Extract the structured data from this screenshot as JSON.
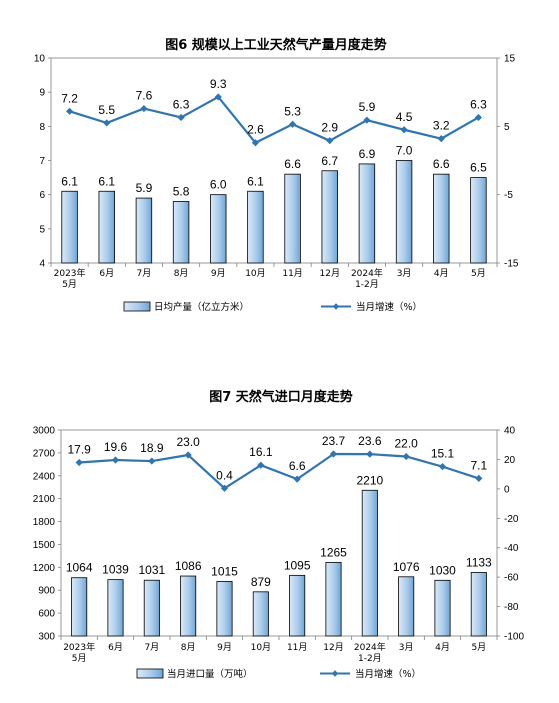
{
  "chart_data": [
    {
      "type": "bar",
      "title": "图6 规模以上工业天然气产量月度走势",
      "categories": [
        [
          "2023年",
          "5月"
        ],
        [
          "6月"
        ],
        [
          "7月"
        ],
        [
          "8月"
        ],
        [
          "9月"
        ],
        [
          "10月"
        ],
        [
          "11月"
        ],
        [
          "12月"
        ],
        [
          "2024年",
          "1-2月"
        ],
        [
          "3月"
        ],
        [
          "4月"
        ],
        [
          "5月"
        ]
      ],
      "series": [
        {
          "name": "日均产量（亿立方米）",
          "axis": "left",
          "kind": "bar",
          "values": [
            6.1,
            6.1,
            5.9,
            5.8,
            6.0,
            6.1,
            6.6,
            6.7,
            6.9,
            7.0,
            6.6,
            6.5
          ]
        },
        {
          "name": "当月增速（%）",
          "axis": "right",
          "kind": "line",
          "values": [
            7.2,
            5.5,
            7.6,
            6.3,
            9.3,
            2.6,
            5.3,
            2.9,
            5.9,
            4.5,
            3.2,
            6.3
          ]
        }
      ],
      "ylim_left": [
        4,
        10
      ],
      "yticks_left": [
        4,
        5,
        6,
        7,
        8,
        9,
        10
      ],
      "ylim_right": [
        -15,
        15
      ],
      "yticks_right": [
        -15,
        -5,
        5,
        15
      ],
      "grid": false,
      "legend_position": "bottom"
    },
    {
      "type": "bar",
      "title": "图7 天然气进口月度走势",
      "categories": [
        [
          "2023年",
          "5月"
        ],
        [
          "6月"
        ],
        [
          "7月"
        ],
        [
          "8月"
        ],
        [
          "9月"
        ],
        [
          "10月"
        ],
        [
          "11月"
        ],
        [
          "12月"
        ],
        [
          "2024年",
          "1-2月"
        ],
        [
          "3月"
        ],
        [
          "4月"
        ],
        [
          "5月"
        ]
      ],
      "series": [
        {
          "name": "当月进口量（万吨）",
          "axis": "left",
          "kind": "bar",
          "values": [
            1064,
            1039,
            1031,
            1086,
            1015,
            879,
            1095,
            1265,
            2210,
            1076,
            1030,
            1133
          ]
        },
        {
          "name": "当月增速（%）",
          "axis": "right",
          "kind": "line",
          "values": [
            17.9,
            19.6,
            18.9,
            23.0,
            0.4,
            16.1,
            6.6,
            23.7,
            23.6,
            22.0,
            15.1,
            7.1
          ]
        }
      ],
      "ylim_left": [
        300,
        3000
      ],
      "yticks_left": [
        300,
        600,
        900,
        1200,
        1500,
        1800,
        2100,
        2400,
        2700,
        3000
      ],
      "ylim_right": [
        -100,
        40
      ],
      "yticks_right": [
        -100,
        -80,
        -60,
        -40,
        -20,
        0,
        20,
        40
      ],
      "grid": false,
      "legend_position": "bottom"
    }
  ],
  "colors": {
    "bar_fill_light": "#dbe9f7",
    "bar_fill_dark": "#7fb0dc",
    "bar_stroke": "#000000",
    "line": "#2e75b6"
  }
}
